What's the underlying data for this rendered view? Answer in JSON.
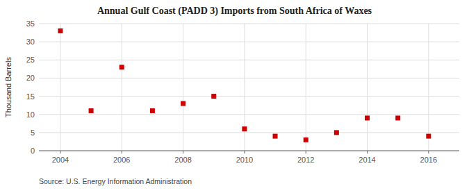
{
  "chart_data": {
    "type": "scatter",
    "title": "Annual Gulf Coast (PADD 3) Imports from South Africa of Waxes",
    "y_label": "Thousand Barrels",
    "annotations": [
      "Source: U.S. Energy Information Administration"
    ],
    "x": [
      2004,
      2005,
      2006,
      2007,
      2008,
      2009,
      2010,
      2011,
      2012,
      2013,
      2014,
      2015,
      2016
    ],
    "values": [
      33,
      11,
      23,
      11,
      13,
      15,
      6,
      4,
      3,
      5,
      9,
      9,
      4
    ],
    "color": "#CC0000",
    "marker": "square",
    "xlim": [
      2003.3,
      2017.0
    ],
    "ylim": [
      0,
      35
    ],
    "xticks": [
      2004,
      2006,
      2008,
      2010,
      2012,
      2014,
      2016
    ],
    "yticks": [
      0,
      5,
      10,
      15,
      20,
      25,
      30,
      35
    ],
    "grid": true
  }
}
